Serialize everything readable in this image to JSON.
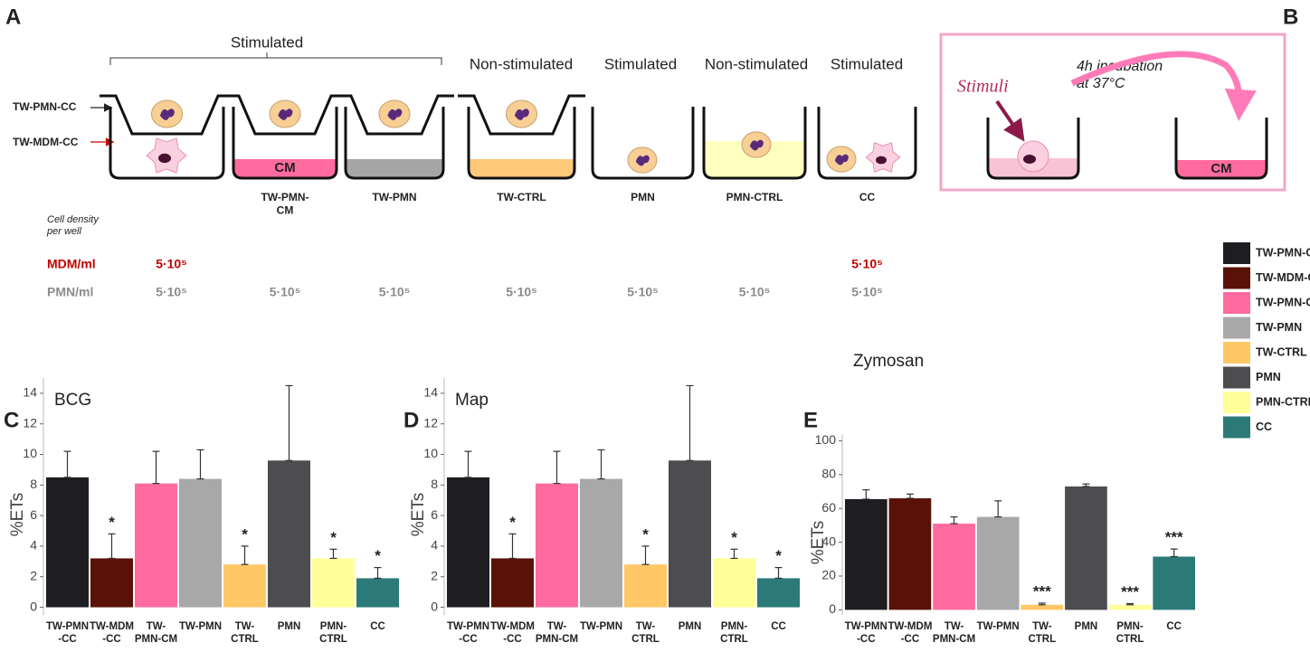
{
  "panel_labels": [
    "A",
    "B",
    "C",
    "D",
    "E"
  ],
  "diagram_a": {
    "group_title": "Stimulated",
    "conditions": [
      "Non-stimulated",
      "Stimulated",
      "Non-stimulated",
      "Stimulated"
    ],
    "insert_labels": [
      "TW-PMN-CC",
      "TW-MDM-CC"
    ],
    "medium_label": "CM",
    "well_labels": [
      "TW-PMN-\nCM",
      "TW-PMN",
      "TW-CTRL",
      "PMN",
      "PMN-CTRL",
      "CC"
    ],
    "density_title": "Cell density\nper well",
    "rows": [
      {
        "label": "MDM/ml",
        "values": [
          "5·10⁵",
          null,
          null,
          null,
          null,
          null,
          "5·10⁵"
        ]
      },
      {
        "label": "PMN/ml",
        "values": [
          "5·10⁵",
          "5·10⁵",
          "5·10⁵",
          "5·10⁵",
          "5·10⁵",
          "5·10⁵",
          "5·10⁵"
        ]
      }
    ]
  },
  "diagram_b": {
    "stimuli": "Stimuli",
    "incubation": "4h incubation\nat 37°C",
    "medium_label": "CM"
  },
  "legend": [
    {
      "name": "TW-PMN-CC",
      "color": "#1e1e22"
    },
    {
      "name": "TW-MDM-CC",
      "color": "#5a1208"
    },
    {
      "name": "TW-PMN-CM",
      "color": "#ff6b9e"
    },
    {
      "name": "TW-PMN",
      "color": "#a8a8a8"
    },
    {
      "name": "TW-CTRL",
      "color": "#ffc766"
    },
    {
      "name": "PMN",
      "color": "#4d4d50"
    },
    {
      "name": "PMN-CTRL",
      "color": "#ffff99"
    },
    {
      "name": "CC",
      "color": "#2b7a78"
    }
  ],
  "chart_data": [
    {
      "type": "bar",
      "title": "BCG",
      "y_label": "%ETs",
      "categories": [
        "TW-PMN\n-CC",
        "TW-MDM\n-CC",
        "TW-\nPMN-CM",
        "TW-PMN",
        "TW-\nCTRL",
        "PMN",
        "PMN-\nCTRL",
        "CC"
      ],
      "values": [
        8.5,
        3.2,
        8.1,
        8.4,
        2.8,
        9.6,
        3.2,
        1.9
      ],
      "errors": [
        1.7,
        1.6,
        2.1,
        1.9,
        1.2,
        4.9,
        0.6,
        0.7
      ],
      "significance": [
        null,
        "*",
        null,
        null,
        "*",
        null,
        "*",
        "*"
      ],
      "colors": [
        "#1e1e22",
        "#5a1208",
        "#ff6b9e",
        "#a8a8a8",
        "#ffc766",
        "#4d4d50",
        "#ffff99",
        "#2b7a78"
      ],
      "ylim": [
        -0.5,
        15
      ],
      "yticks": [
        0,
        2,
        4,
        6,
        8,
        10,
        12,
        14
      ]
    },
    {
      "type": "bar",
      "title": "Map",
      "y_label": "%ETs",
      "categories": [
        "TW-PMN\n-CC",
        "TW-MDM\n-CC",
        "TW-\nPMN-CM",
        "TW-PMN",
        "TW-\nCTRL",
        "PMN",
        "PMN-\nCTRL",
        "CC"
      ],
      "values": [
        8.5,
        3.2,
        8.1,
        8.4,
        2.8,
        9.6,
        3.2,
        1.9
      ],
      "errors": [
        1.7,
        1.6,
        2.1,
        1.9,
        1.2,
        4.9,
        0.6,
        0.7
      ],
      "significance": [
        null,
        "*",
        null,
        null,
        "*",
        null,
        "*",
        "*"
      ],
      "colors": [
        "#1e1e22",
        "#5a1208",
        "#ff6b9e",
        "#a8a8a8",
        "#ffc766",
        "#4d4d50",
        "#ffff99",
        "#2b7a78"
      ],
      "ylim": [
        -0.5,
        15
      ],
      "yticks": [
        0,
        2,
        4,
        6,
        8,
        10,
        12,
        14
      ]
    },
    {
      "type": "bar",
      "title": "Zymosan",
      "y_label": "%ETs",
      "categories": [
        "TW-PMN\n-CC",
        "TW-MDM\n-CC",
        "TW-\nPMN-CM",
        "TW-PMN",
        "TW-\nCTRL",
        "PMN",
        "PMN-\nCTRL",
        "CC"
      ],
      "values": [
        65.5,
        66,
        51,
        55,
        3,
        73,
        3,
        31.5
      ],
      "errors": [
        5.5,
        2.5,
        4,
        9.5,
        1,
        1.5,
        0.7,
        4.5
      ],
      "significance": [
        null,
        null,
        null,
        null,
        "***",
        null,
        "***",
        "***"
      ],
      "colors": [
        "#1e1e22",
        "#5a1208",
        "#ff6b9e",
        "#a8a8a8",
        "#ffc766",
        "#4d4d50",
        "#ffff99",
        "#2b7a78"
      ],
      "ylim": [
        -3,
        104
      ],
      "yticks": [
        0,
        20,
        40,
        60,
        80,
        100
      ]
    }
  ]
}
